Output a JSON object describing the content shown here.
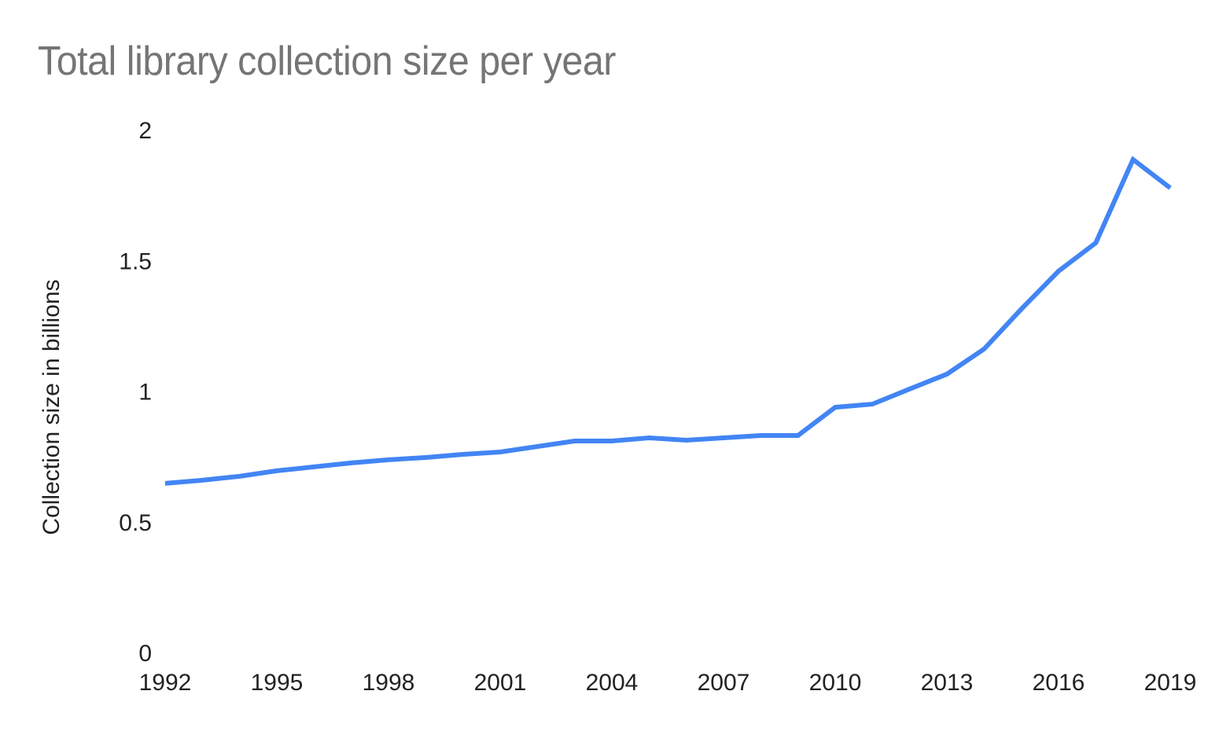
{
  "chart_data": {
    "type": "line",
    "title": "Total library collection size per year",
    "xlabel": "",
    "ylabel": "Collection size in billions",
    "ylim": [
      0,
      2
    ],
    "xlim": [
      1992,
      2019
    ],
    "grid": false,
    "legend": null,
    "y_ticks": [
      "0",
      "0.5",
      "1",
      "1.5",
      "2"
    ],
    "x_ticks": [
      "1992",
      "1995",
      "1998",
      "2001",
      "2004",
      "2007",
      "2010",
      "2013",
      "2016",
      "2019"
    ],
    "x": [
      1992,
      1993,
      1994,
      1995,
      1996,
      1997,
      1998,
      1999,
      2000,
      2001,
      2002,
      2003,
      2004,
      2005,
      2006,
      2007,
      2008,
      2009,
      2010,
      2011,
      2012,
      2013,
      2014,
      2015,
      2016,
      2017,
      2018,
      2019
    ],
    "series": [
      {
        "name": "Collection size",
        "color": "#4285f4",
        "values": [
          0.647,
          0.659,
          0.674,
          0.695,
          0.71,
          0.725,
          0.737,
          0.746,
          0.758,
          0.767,
          0.788,
          0.809,
          0.809,
          0.821,
          0.812,
          0.821,
          0.83,
          0.83,
          0.938,
          0.95,
          1.008,
          1.065,
          1.161,
          1.314,
          1.459,
          1.567,
          1.886,
          1.777
        ]
      }
    ]
  }
}
